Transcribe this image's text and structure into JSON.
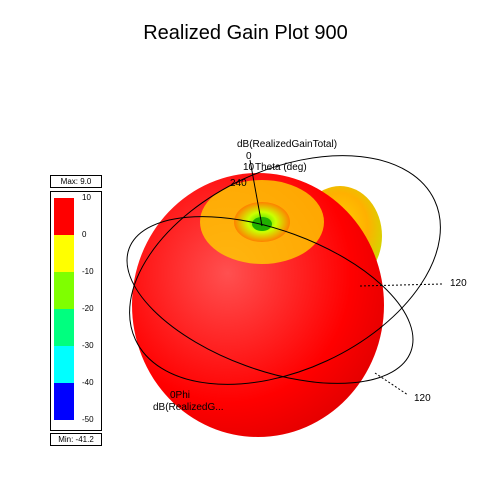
{
  "title": "Realized Gain Plot 900",
  "legend": {
    "max_label": "Max: 9.0",
    "min_label": "Min: -41.2",
    "ticks": [
      "10",
      "0",
      "-10",
      "-20",
      "-30",
      "-40",
      "-50"
    ],
    "colors": [
      "#ff0000",
      "#ffff00",
      "#7fff00",
      "#00ff7f",
      "#00ffff",
      "#0000ff"
    ]
  },
  "chart_data": {
    "type": "other",
    "description_type": "3d-radiation-pattern",
    "title": "Realized Gain Plot 900",
    "quantity": "dB(RealizedGainTotal)",
    "max": 9.0,
    "min": -41.2,
    "color_scale": {
      "ticks": [
        10,
        0,
        -10,
        -20,
        -30,
        -40,
        -50
      ]
    }
  },
  "plot_labels": {
    "quantity_top": "dB(RealizedGainTotal)",
    "theta_label": "Theta (deg)",
    "zero_mark": "0",
    "ten_mark": "10",
    "two_forty": "240",
    "one_twenty_right": "120",
    "one_twenty_bottom": "120",
    "phi_label": "0Phi",
    "quantity_bottom": "dB(RealizedG..."
  }
}
